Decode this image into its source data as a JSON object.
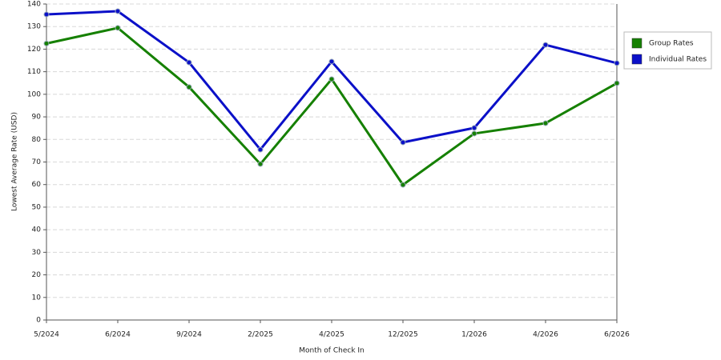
{
  "chart_data": {
    "type": "line",
    "xlabel": "Month of Check In",
    "ylabel": "Lowest Average Rate (USD)",
    "categories": [
      "5/2024",
      "6/2024",
      "9/2024",
      "2/2025",
      "4/2025",
      "12/2025",
      "1/2026",
      "4/2026",
      "6/2026"
    ],
    "series": [
      {
        "name": "Group Rates",
        "color": "#158000",
        "values": [
          122.5,
          129.4,
          103.2,
          69.1,
          106.7,
          59.9,
          82.6,
          87.2,
          104.9
        ]
      },
      {
        "name": "Individual Rates",
        "color": "#0b10c8",
        "values": [
          135.4,
          136.8,
          114.1,
          75.5,
          114.5,
          78.7,
          85.1,
          121.9,
          113.8
        ]
      }
    ],
    "ylim": [
      0,
      140
    ],
    "yticks": [
      0,
      10,
      20,
      30,
      40,
      50,
      60,
      70,
      80,
      90,
      100,
      110,
      120,
      130,
      140
    ],
    "grid": true,
    "legend": "right"
  }
}
